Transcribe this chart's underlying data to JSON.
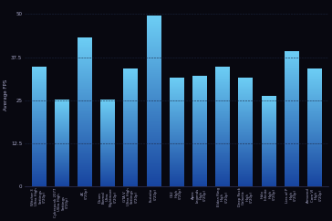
{
  "categories": [
    "Witcher 3\nUltra High\nSettings\n(720p)",
    "Cyberpunk 2077\nUltra High\nSettings\n(720p)",
    "4K\n(720p)",
    "Doom\nEternal\nUltra\nNightmare\n(720p)",
    "GTA V\nUltra High\nSettings\n(720p)",
    "Fortnite\n(720p)",
    "CS2\nHigh\n(720p)",
    "Apex\nLegends\nHigh\n(720p)",
    "Elden Ring\nHigh\n(720p)",
    "Deep Rock\nGalactic\nHigh\n(720p)",
    "Halo\nInfinite\nHigh\n(720p)",
    "Lies of P\nHigh\n(720p)",
    "Armored\nCore VI\nHigh\n(720p)"
  ],
  "values": [
    34.5,
    25.0,
    43.0,
    25.0,
    34.0,
    49.5,
    31.5,
    32.0,
    34.5,
    31.5,
    26.0,
    39.0,
    34.0
  ],
  "ylabel": "Average FPS",
  "yticks": [
    0,
    12.5,
    25,
    37.5,
    50
  ],
  "ytick_labels": [
    "0",
    "12.5",
    "25",
    "37.5",
    "50"
  ],
  "ylim": [
    0,
    53
  ],
  "background_color": "#080810",
  "bar_top_color": "#6dcef5",
  "bar_bottom_color": "#1845a0",
  "grid_color": "#1a2540",
  "text_color": "#aaaacc",
  "axis_color": "#333355",
  "bar_width": 0.6,
  "figsize": [
    3.64,
    2.42
  ],
  "dpi": 100
}
